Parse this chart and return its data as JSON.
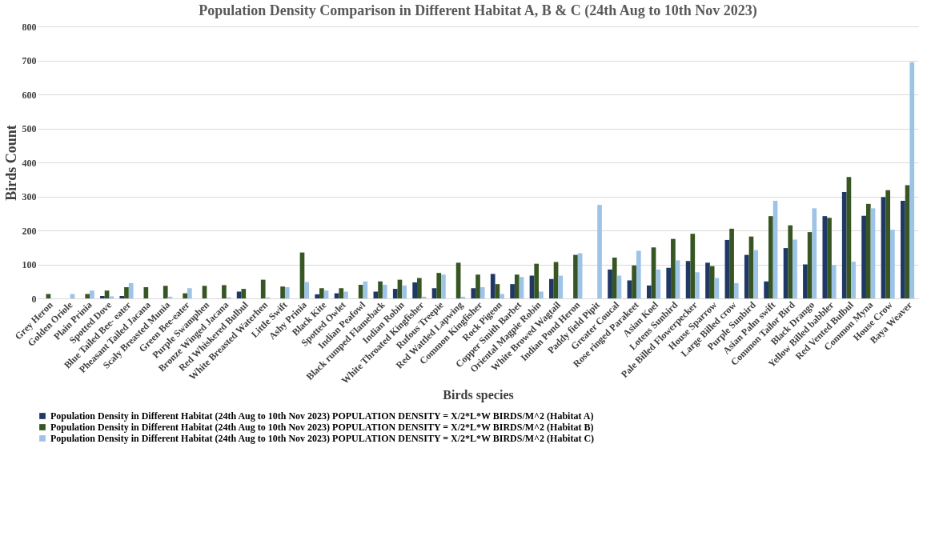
{
  "chart_data": {
    "type": "bar",
    "title": "Population Density Comparison in Different Habitat A, B & C (24th Aug to 10th Nov 2023)",
    "xlabel": "Birds species",
    "ylabel": "Birds Count",
    "categories": [
      "Grey Heron",
      "Golden Oriole",
      "Plain Prinia",
      "Spotted Dove",
      "Blue Tailed Bee- eater",
      "Pheasant Tailed Jacana",
      "Scaly Breasted Munia",
      "Green Bee-eater",
      "Purple Swamphen",
      "Bronze Winged Jacana",
      "Red Whiskered Bulbul",
      "White Breasted Waterhen",
      "Little Swift",
      "Ashy Prinia",
      "Black Kite",
      "Spotted Owlet",
      "Indian Peafowl",
      "Black rumped Flameback",
      "Indian Robin",
      "White Throated Kingfisher",
      "Rufous Treepie",
      "Red Wattled Lapwing",
      "Common Kingfisher",
      "Rock Pigeon",
      "Copper Smith Barbet",
      "Oriental Magpie Robin",
      "White Browed Wagtail",
      "Indian Pond Heron",
      "Paddy field Pipit",
      "Greater Coucal",
      "Rose ringed Parakeet",
      "Asian Koel",
      "Lotens Sunbird",
      "Pale Billed Flowerpecker",
      "House Sparrow",
      "Large Billed crow",
      "Purple Sunbird",
      "Asian Palm swift",
      "Common Tailor Bird",
      "Black Drango",
      "Yellow Billed babbler",
      "Red Vented Bulbul",
      "Common Myna",
      "House Crow",
      "Baya Weaver"
    ],
    "series": [
      {
        "name": "Population Density in Different Habitat                                    (24th Aug to 10th Nov 2023)  POPULATION DENSITY = X/2*L*W  BIRDS/M^2 (Habitat A)",
        "color": "#1f3864",
        "values": [
          0,
          0,
          0,
          7,
          7,
          0,
          0,
          0,
          0,
          0,
          20,
          0,
          0,
          0,
          12,
          15,
          0,
          20,
          28,
          47,
          30,
          0,
          30,
          72,
          42,
          67,
          57,
          0,
          0,
          85,
          53,
          38,
          90,
          110,
          105,
          172,
          128,
          50,
          148,
          100,
          242,
          313,
          243,
          298,
          287
        ]
      },
      {
        "name": "Population Density in Different Habitat                                    (24th Aug to 10th Nov 2023)  POPULATION DENSITY  = X/2*L*W BIRDS/M^2 (Habitat B)",
        "color": "#375623",
        "values": [
          13,
          0,
          13,
          23,
          33,
          33,
          37,
          15,
          37,
          39,
          28,
          55,
          35,
          135,
          30,
          30,
          40,
          50,
          55,
          60,
          75,
          105,
          70,
          42,
          70,
          102,
          107,
          128,
          0,
          120,
          97,
          150,
          175,
          190,
          95,
          205,
          182,
          242,
          215,
          195,
          237,
          357,
          278,
          318,
          333
        ]
      },
      {
        "name": "Population Density in Different Habitat                                    (24th Aug to 10th Nov 2023)  POPULATION DENSITY = X/2*L*W BIRDS/M^2 (Habitat C)",
        "color": "#9dc3e6",
        "values": [
          0,
          13,
          23,
          6,
          45,
          0,
          5,
          30,
          0,
          3,
          0,
          3,
          33,
          48,
          23,
          20,
          50,
          40,
          38,
          5,
          70,
          5,
          33,
          13,
          63,
          20,
          67,
          133,
          275,
          67,
          140,
          85,
          112,
          77,
          60,
          45,
          142,
          287,
          173,
          265,
          98,
          108,
          265,
          202,
          695
        ]
      }
    ],
    "ylim": [
      0,
      800
    ],
    "yticks": [
      0,
      100,
      200,
      300,
      400,
      500,
      600,
      700,
      800
    ],
    "grid": "y",
    "legend": "bottom left"
  }
}
